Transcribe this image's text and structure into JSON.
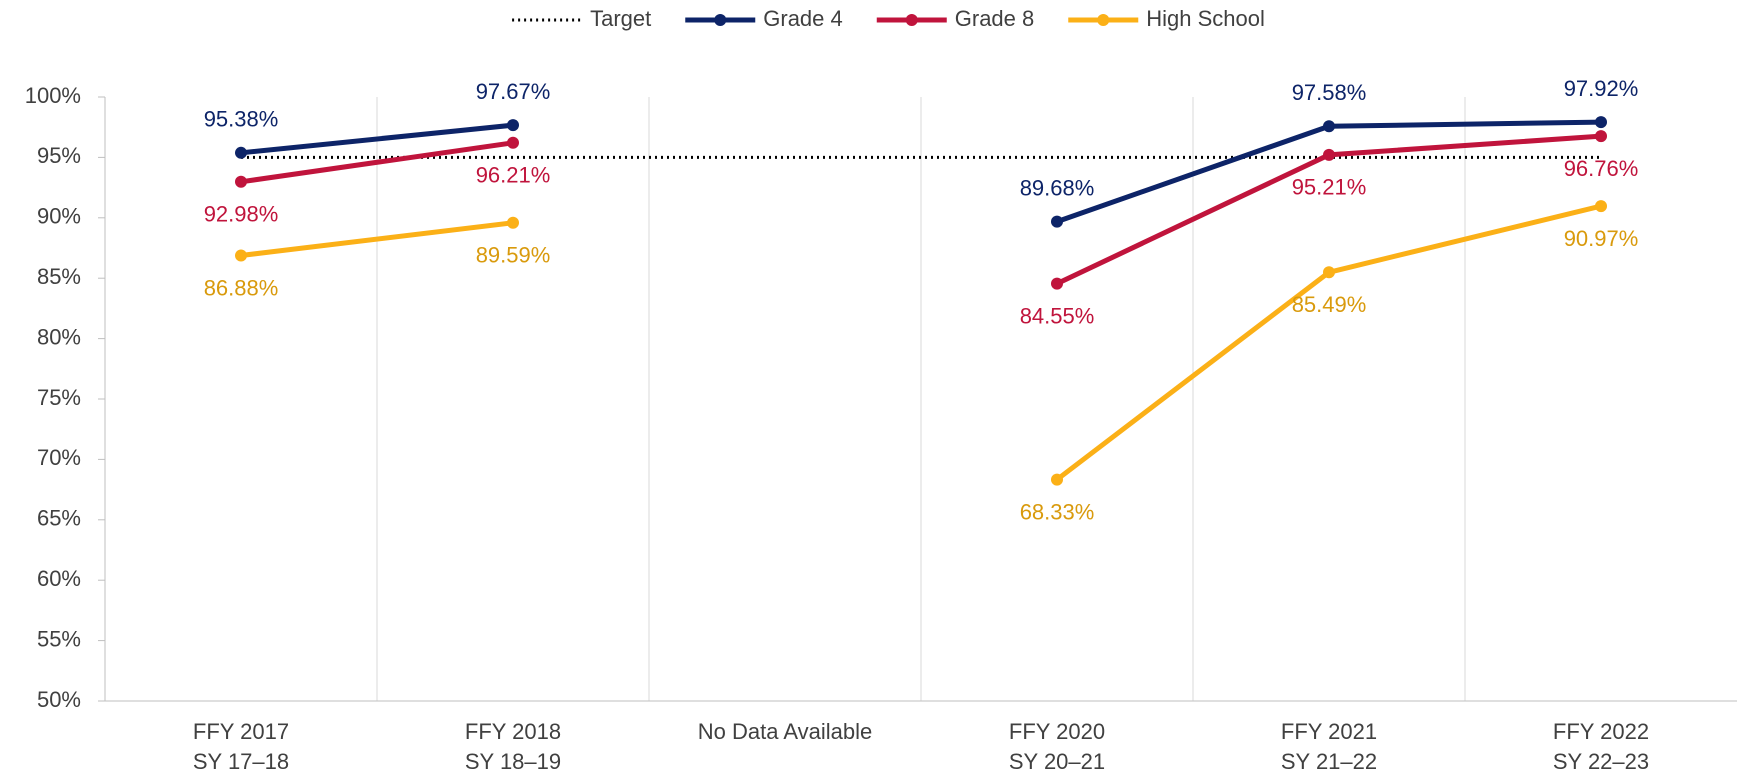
{
  "chart_data": {
    "type": "line",
    "categories": [
      [
        "FFY 2017",
        "SY 17–18"
      ],
      [
        "FFY 2018",
        "SY 18–19"
      ],
      [
        "No Data Available"
      ],
      [
        "FFY 2020",
        "SY 20–21"
      ],
      [
        "FFY 2021",
        "SY 21–22"
      ],
      [
        "FFY 2022",
        "SY 22–23"
      ]
    ],
    "series": [
      {
        "name": "Target",
        "color": "#000000",
        "dash": "dotted",
        "values": [
          95,
          95,
          95,
          95,
          95,
          95
        ]
      },
      {
        "name": "Grade 4",
        "color": "#0d2468",
        "label_color": "#0d2468",
        "label_position": "above",
        "values": [
          95.38,
          97.67,
          null,
          89.68,
          97.58,
          97.92
        ],
        "value_labels": [
          "95.38%",
          "97.67%",
          null,
          "89.68%",
          "97.58%",
          "97.92%"
        ]
      },
      {
        "name": "Grade 8",
        "color": "#c0143c",
        "label_color": "#c0143c",
        "label_position": "below",
        "values": [
          92.98,
          96.21,
          null,
          84.55,
          95.21,
          96.76
        ],
        "value_labels": [
          "92.98%",
          "96.21%",
          null,
          "84.55%",
          "95.21%",
          "96.76%"
        ]
      },
      {
        "name": "High School",
        "color": "#fbb017",
        "label_color": "#d99a0c",
        "label_position": "below",
        "values": [
          86.88,
          89.59,
          null,
          68.33,
          85.49,
          90.97
        ],
        "value_labels": [
          "86.88%",
          "89.59%",
          null,
          "68.33%",
          "85.49%",
          "90.97%"
        ]
      }
    ],
    "ylim": [
      50,
      100
    ],
    "yticks": [
      {
        "value": 50,
        "label": "50%"
      },
      {
        "value": 55,
        "label": "55%"
      },
      {
        "value": 60,
        "label": "60%"
      },
      {
        "value": 65,
        "label": "65%"
      },
      {
        "value": 70,
        "label": "70%"
      },
      {
        "value": 75,
        "label": "75%"
      },
      {
        "value": 80,
        "label": "80%"
      },
      {
        "value": 85,
        "label": "85%"
      },
      {
        "value": 90,
        "label": "90%"
      },
      {
        "value": 95,
        "label": "95%"
      },
      {
        "value": 100,
        "label": "100%"
      }
    ],
    "legend": "top"
  }
}
